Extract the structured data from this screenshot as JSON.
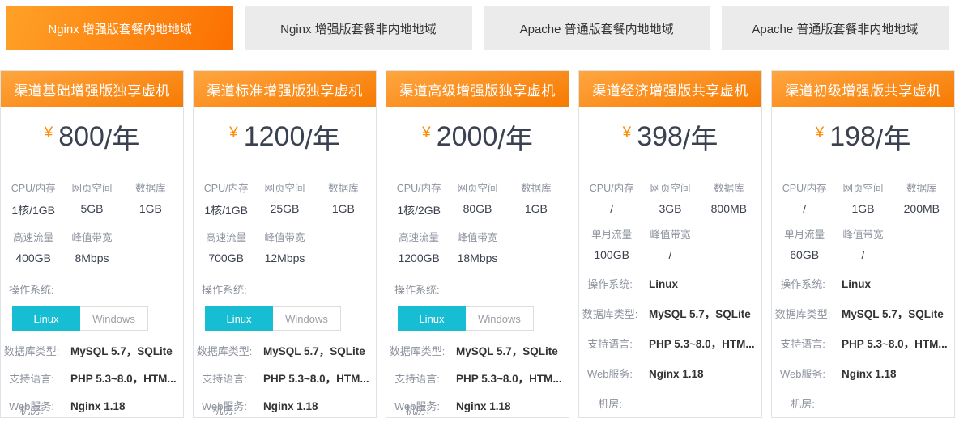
{
  "shared": {
    "currency": "¥",
    "per_year_suffix": "/年",
    "os_label": "操作系统:",
    "toggle": {
      "linux": "Linux",
      "windows": "Windows"
    }
  },
  "colors": {
    "accent_orange": "#fb7001",
    "tab_active_gradient": [
      "#ffa127",
      "#fb7001"
    ],
    "card_header_gradient": [
      "#ffa640",
      "#f77a02"
    ],
    "inactive_tab_bg": "#ebebeb",
    "linux_toggle_cyan": "#17bdd2",
    "price_text": "#3a4150",
    "yen_symbol": "#ff8a00",
    "label_gray": "#8d939e"
  },
  "tabs": [
    {
      "label": "Nginx 增强版套餐内地地域",
      "active": true
    },
    {
      "label": "Nginx 增强版套餐非内地地域",
      "active": false
    },
    {
      "label": "Apache 普通版套餐内地地域",
      "active": false
    },
    {
      "label": "Apache 普通版套餐非内地地域",
      "active": false
    }
  ],
  "cards": [
    {
      "title": "渠道基础增强版独享虚机",
      "price": "800",
      "os_type": "toggle",
      "specs": [
        {
          "label": "CPU/内存",
          "value": "1核/1GB"
        },
        {
          "label": "网页空间",
          "value": "5GB"
        },
        {
          "label": "数据库",
          "value": "1GB"
        },
        {
          "label": "高速流量",
          "value": "400GB"
        },
        {
          "label": "峰值带宽",
          "value": "8Mbps"
        }
      ],
      "details": [
        {
          "label": "数据库类型:",
          "value": "MySQL 5.7，SQLite"
        },
        {
          "label": "支持语言:",
          "value": "PHP 5.3~8.0，HTM..."
        },
        {
          "label": "Web服务:",
          "value": "Nginx 1.18"
        },
        {
          "label": "机房:",
          "value": ""
        }
      ]
    },
    {
      "title": "渠道标准增强版独享虚机",
      "price": "1200",
      "os_type": "toggle",
      "specs": [
        {
          "label": "CPU/内存",
          "value": "1核/1GB"
        },
        {
          "label": "网页空间",
          "value": "25GB"
        },
        {
          "label": "数据库",
          "value": "1GB"
        },
        {
          "label": "高速流量",
          "value": "700GB"
        },
        {
          "label": "峰值带宽",
          "value": "12Mbps"
        }
      ],
      "details": [
        {
          "label": "数据库类型:",
          "value": "MySQL 5.7，SQLite"
        },
        {
          "label": "支持语言:",
          "value": "PHP 5.3~8.0，HTM..."
        },
        {
          "label": "Web服务:",
          "value": "Nginx 1.18"
        },
        {
          "label": "机房:",
          "value": ""
        }
      ]
    },
    {
      "title": "渠道高级增强版独享虚机",
      "price": "2000",
      "os_type": "toggle",
      "specs": [
        {
          "label": "CPU/内存",
          "value": "1核/2GB"
        },
        {
          "label": "网页空间",
          "value": "80GB"
        },
        {
          "label": "数据库",
          "value": "1GB"
        },
        {
          "label": "高速流量",
          "value": "1200GB"
        },
        {
          "label": "峰值带宽",
          "value": "18Mbps"
        }
      ],
      "details": [
        {
          "label": "数据库类型:",
          "value": "MySQL 5.7，SQLite"
        },
        {
          "label": "支持语言:",
          "value": "PHP 5.3~8.0，HTM..."
        },
        {
          "label": "Web服务:",
          "value": "Nginx 1.18"
        },
        {
          "label": "机房:",
          "value": ""
        }
      ]
    },
    {
      "title": "渠道经济增强版共享虚机",
      "price": "398",
      "os_type": "text",
      "os_value": "Linux",
      "specs": [
        {
          "label": "CPU/内存",
          "value": "/"
        },
        {
          "label": "网页空间",
          "value": "3GB"
        },
        {
          "label": "数据库",
          "value": "800MB"
        },
        {
          "label": "单月流量",
          "value": "100GB"
        },
        {
          "label": "峰值带宽",
          "value": "/"
        }
      ],
      "details": [
        {
          "label": "数据库类型:",
          "value": "MySQL 5.7，SQLite"
        },
        {
          "label": "支持语言:",
          "value": "PHP 5.3~8.0，HTM..."
        },
        {
          "label": "Web服务:",
          "value": "Nginx 1.18"
        },
        {
          "label": "机房:",
          "value": ""
        }
      ]
    },
    {
      "title": "渠道初级增强版共享虚机",
      "price": "198",
      "os_type": "text",
      "os_value": "Linux",
      "specs": [
        {
          "label": "CPU/内存",
          "value": "/"
        },
        {
          "label": "网页空间",
          "value": "1GB"
        },
        {
          "label": "数据库",
          "value": "200MB"
        },
        {
          "label": "单月流量",
          "value": "60GB"
        },
        {
          "label": "峰值带宽",
          "value": "/"
        }
      ],
      "details": [
        {
          "label": "数据库类型:",
          "value": "MySQL 5.7，SQLite"
        },
        {
          "label": "支持语言:",
          "value": "PHP 5.3~8.0，HTM..."
        },
        {
          "label": "Web服务:",
          "value": "Nginx 1.18"
        },
        {
          "label": "机房:",
          "value": ""
        }
      ]
    }
  ]
}
